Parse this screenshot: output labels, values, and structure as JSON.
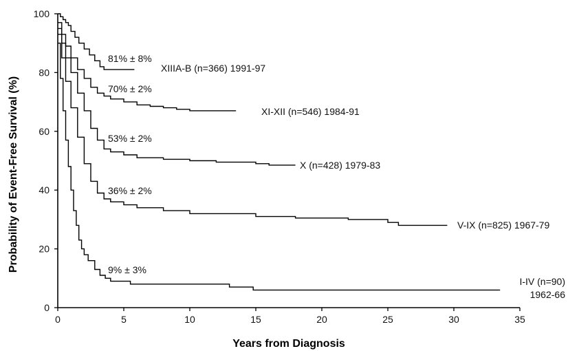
{
  "chart_data": {
    "type": "line",
    "title": "",
    "xlabel": "Years from Diagnosis",
    "ylabel": "Probability of Event-Free Survival (%)",
    "xlim": [
      0,
      35
    ],
    "ylim": [
      0,
      100
    ],
    "x_ticks": [
      0,
      5,
      10,
      15,
      20,
      25,
      30,
      35
    ],
    "y_ticks": [
      0,
      20,
      40,
      60,
      80,
      100
    ],
    "grid": false,
    "series": [
      {
        "name": "XIIIA-B (n=366) 1991-97",
        "annotation": "81% ± 8%",
        "points": [
          [
            0,
            100
          ],
          [
            0.2,
            99
          ],
          [
            0.4,
            98
          ],
          [
            0.6,
            97
          ],
          [
            0.8,
            96
          ],
          [
            1.0,
            94
          ],
          [
            1.3,
            92
          ],
          [
            1.6,
            90
          ],
          [
            2.0,
            88
          ],
          [
            2.4,
            86
          ],
          [
            2.8,
            84
          ],
          [
            3.2,
            82
          ],
          [
            3.5,
            81
          ],
          [
            5.8,
            81
          ]
        ]
      },
      {
        "name": "XI-XII (n=546) 1984-91",
        "annotation": "70% ± 2%",
        "points": [
          [
            0,
            97
          ],
          [
            0.3,
            93
          ],
          [
            0.6,
            89
          ],
          [
            1.0,
            85
          ],
          [
            1.5,
            81
          ],
          [
            2.0,
            78
          ],
          [
            2.5,
            75
          ],
          [
            3.0,
            73
          ],
          [
            3.5,
            72
          ],
          [
            4.0,
            71
          ],
          [
            5.0,
            70
          ],
          [
            6.0,
            69
          ],
          [
            7.0,
            68.5
          ],
          [
            8.0,
            68
          ],
          [
            9.0,
            67.5
          ],
          [
            10.0,
            67
          ],
          [
            11.0,
            67
          ],
          [
            12.0,
            67
          ],
          [
            13.5,
            67
          ]
        ]
      },
      {
        "name": "X (n=428) 1979-83",
        "annotation": "53% ± 2%",
        "points": [
          [
            0,
            95
          ],
          [
            0.3,
            90
          ],
          [
            0.6,
            85
          ],
          [
            1.0,
            80
          ],
          [
            1.5,
            73
          ],
          [
            2.0,
            67
          ],
          [
            2.5,
            61
          ],
          [
            3.0,
            57
          ],
          [
            3.5,
            54
          ],
          [
            4.0,
            53
          ],
          [
            5.0,
            52
          ],
          [
            6.0,
            51
          ],
          [
            8.0,
            50.5
          ],
          [
            10.0,
            50
          ],
          [
            12.0,
            49.5
          ],
          [
            15.0,
            49
          ],
          [
            16.0,
            48.5
          ],
          [
            18.0,
            48.5
          ]
        ]
      },
      {
        "name": "V-IX (n=825) 1967-79",
        "annotation": "36% ± 2%",
        "points": [
          [
            0,
            93
          ],
          [
            0.3,
            85
          ],
          [
            0.6,
            77
          ],
          [
            1.0,
            68
          ],
          [
            1.5,
            58
          ],
          [
            2.0,
            49
          ],
          [
            2.5,
            43
          ],
          [
            3.0,
            39
          ],
          [
            3.5,
            37
          ],
          [
            4.0,
            36
          ],
          [
            5.0,
            35
          ],
          [
            6.0,
            34
          ],
          [
            8.0,
            33
          ],
          [
            10.0,
            32
          ],
          [
            12.0,
            32
          ],
          [
            15.0,
            31
          ],
          [
            18.0,
            30.5
          ],
          [
            22.0,
            30
          ],
          [
            25.0,
            29
          ],
          [
            25.8,
            28
          ],
          [
            29.5,
            28
          ]
        ]
      },
      {
        "name": "I-IV (n=90) 1962-66",
        "annotation": "9% ± 3%",
        "points": [
          [
            0,
            90
          ],
          [
            0.2,
            78
          ],
          [
            0.4,
            67
          ],
          [
            0.6,
            57
          ],
          [
            0.8,
            48
          ],
          [
            1.0,
            40
          ],
          [
            1.2,
            33
          ],
          [
            1.4,
            28
          ],
          [
            1.6,
            23
          ],
          [
            1.8,
            20
          ],
          [
            2.0,
            18
          ],
          [
            2.3,
            16
          ],
          [
            2.8,
            13
          ],
          [
            3.2,
            11
          ],
          [
            3.6,
            10
          ],
          [
            4.0,
            9
          ],
          [
            5.0,
            9
          ],
          [
            5.5,
            8
          ],
          [
            8.0,
            8
          ],
          [
            12.0,
            8
          ],
          [
            13.0,
            7
          ],
          [
            14.8,
            6
          ],
          [
            20.0,
            6
          ],
          [
            33.5,
            6
          ]
        ]
      }
    ]
  }
}
